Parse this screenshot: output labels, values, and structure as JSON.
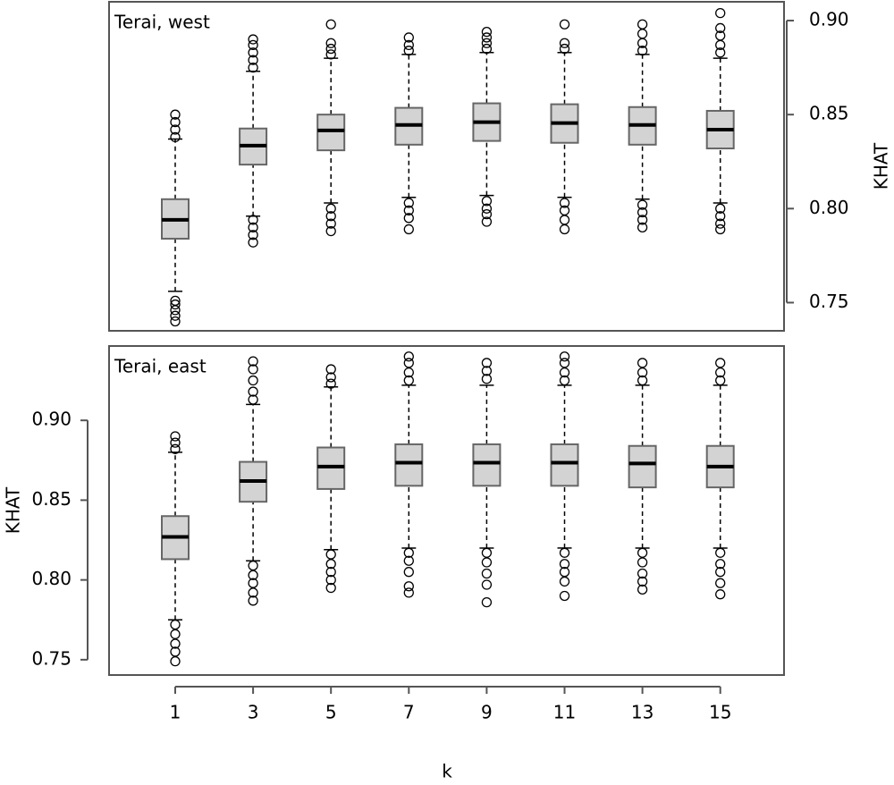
{
  "chart_data": [
    {
      "type": "box",
      "annotation": "Terai, west",
      "y_label": "KHAT",
      "y_axis_side": "right",
      "color": "#d3d3d3",
      "ylim": [
        0.735,
        0.91
      ],
      "yticks": [
        {
          "value": 0.9,
          "label": "0.90"
        },
        0.85,
        {
          "value": 0.8,
          "label": "0.80"
        },
        0.75
      ],
      "boxes": [
        {
          "low": 0.756,
          "q1": 0.784,
          "median": 0.794,
          "q3": 0.805,
          "high": 0.837,
          "outliers": [
            0.74,
            0.743,
            0.746,
            0.749,
            0.751,
            0.838,
            0.842,
            0.846,
            0.85
          ]
        },
        {
          "low": 0.796,
          "q1": 0.8234,
          "median": 0.8335,
          "q3": 0.8426,
          "high": 0.873,
          "outliers": [
            0.875,
            0.879,
            0.883,
            0.887,
            0.89,
            0.794,
            0.79,
            0.786,
            0.782
          ]
        },
        {
          "low": 0.803,
          "q1": 0.831,
          "median": 0.8416,
          "q3": 0.85,
          "high": 0.88,
          "outliers": [
            0.882,
            0.885,
            0.888,
            0.898,
            0.8,
            0.796,
            0.792,
            0.788
          ]
        },
        {
          "low": 0.806,
          "q1": 0.834,
          "median": 0.8445,
          "q3": 0.8536,
          "high": 0.882,
          "outliers": [
            0.884,
            0.887,
            0.891,
            0.803,
            0.799,
            0.795,
            0.789
          ]
        },
        {
          "low": 0.807,
          "q1": 0.836,
          "median": 0.846,
          "q3": 0.856,
          "high": 0.883,
          "outliers": [
            0.885,
            0.888,
            0.891,
            0.894,
            0.804,
            0.8,
            0.797,
            0.793
          ]
        },
        {
          "low": 0.806,
          "q1": 0.835,
          "median": 0.8455,
          "q3": 0.8555,
          "high": 0.883,
          "outliers": [
            0.885,
            0.888,
            0.898,
            0.803,
            0.799,
            0.794,
            0.789
          ]
        },
        {
          "low": 0.805,
          "q1": 0.834,
          "median": 0.8445,
          "q3": 0.854,
          "high": 0.882,
          "outliers": [
            0.884,
            0.888,
            0.893,
            0.898,
            0.802,
            0.798,
            0.794,
            0.79
          ]
        },
        {
          "low": 0.803,
          "q1": 0.832,
          "median": 0.842,
          "q3": 0.852,
          "high": 0.88,
          "outliers": [
            0.883,
            0.887,
            0.892,
            0.896,
            0.904,
            0.8,
            0.796,
            0.792,
            0.789
          ]
        }
      ]
    },
    {
      "type": "box",
      "annotation": "Terai, east",
      "y_label": "KHAT",
      "y_axis_side": "left",
      "x_label": "k",
      "color": "#d3d3d3",
      "categories": [
        "1",
        "3",
        "5",
        "7",
        "9",
        "11",
        "13",
        "15"
      ],
      "ylim": [
        0.7404,
        0.9466
      ],
      "yticks": [
        {
          "value": 0.9,
          "label": "0.90"
        },
        0.85,
        {
          "value": 0.8,
          "label": "0.80"
        },
        0.75
      ],
      "boxes": [
        {
          "low": 0.775,
          "q1": 0.813,
          "median": 0.827,
          "q3": 0.84,
          "high": 0.88,
          "outliers": [
            0.882,
            0.886,
            0.89,
            0.772,
            0.766,
            0.76,
            0.755,
            0.749
          ]
        },
        {
          "low": 0.812,
          "q1": 0.849,
          "median": 0.862,
          "q3": 0.874,
          "high": 0.91,
          "outliers": [
            0.913,
            0.918,
            0.925,
            0.932,
            0.937,
            0.809,
            0.803,
            0.798,
            0.792,
            0.787
          ]
        },
        {
          "low": 0.819,
          "q1": 0.857,
          "median": 0.871,
          "q3": 0.883,
          "high": 0.921,
          "outliers": [
            0.923,
            0.927,
            0.932,
            0.816,
            0.81,
            0.805,
            0.8,
            0.795
          ]
        },
        {
          "low": 0.82,
          "q1": 0.859,
          "median": 0.8735,
          "q3": 0.885,
          "high": 0.922,
          "outliers": [
            0.925,
            0.93,
            0.936,
            0.94,
            0.817,
            0.812,
            0.805,
            0.796,
            0.792
          ]
        },
        {
          "low": 0.82,
          "q1": 0.859,
          "median": 0.8735,
          "q3": 0.885,
          "high": 0.922,
          "outliers": [
            0.926,
            0.931,
            0.936,
            0.817,
            0.811,
            0.804,
            0.797,
            0.786
          ]
        },
        {
          "low": 0.82,
          "q1": 0.859,
          "median": 0.8735,
          "q3": 0.885,
          "high": 0.922,
          "outliers": [
            0.925,
            0.93,
            0.936,
            0.94,
            0.817,
            0.81,
            0.805,
            0.799,
            0.79
          ]
        },
        {
          "low": 0.82,
          "q1": 0.858,
          "median": 0.873,
          "q3": 0.884,
          "high": 0.922,
          "outliers": [
            0.925,
            0.93,
            0.936,
            0.817,
            0.811,
            0.804,
            0.799,
            0.794
          ]
        },
        {
          "low": 0.82,
          "q1": 0.858,
          "median": 0.871,
          "q3": 0.884,
          "high": 0.922,
          "outliers": [
            0.925,
            0.93,
            0.936,
            0.817,
            0.81,
            0.805,
            0.798,
            0.791
          ]
        }
      ]
    }
  ]
}
